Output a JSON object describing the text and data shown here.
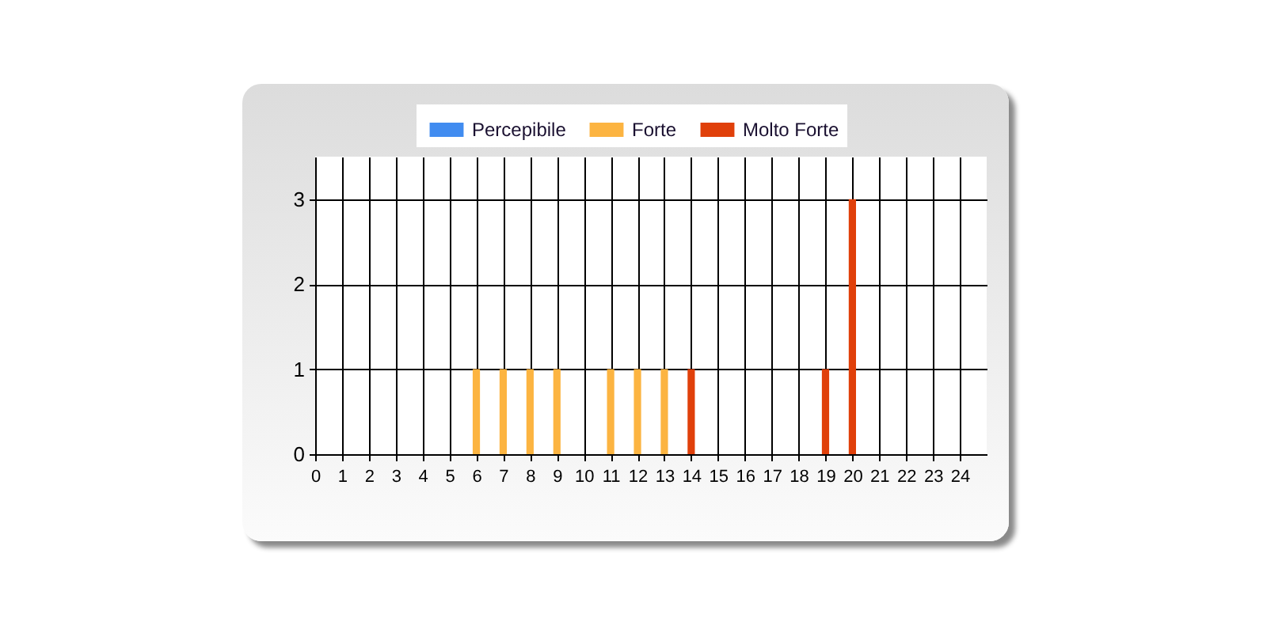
{
  "chart_data": {
    "type": "bar",
    "x": [
      6,
      7,
      8,
      9,
      11,
      12,
      13,
      14,
      19,
      20
    ],
    "series": [
      {
        "name": "Percepibile",
        "color": "#418cf0",
        "values": [
          null,
          null,
          null,
          null,
          null,
          null,
          null,
          null,
          null,
          null
        ]
      },
      {
        "name": "Forte",
        "color": "#fcb441",
        "values": [
          1,
          1,
          1,
          1,
          1,
          1,
          1,
          null,
          null,
          null
        ]
      },
      {
        "name": "Molto Forte",
        "color": "#e0400a",
        "values": [
          null,
          null,
          null,
          null,
          null,
          null,
          null,
          1,
          1,
          3
        ]
      }
    ],
    "xlim": [
      0,
      25
    ],
    "xticks": [
      0,
      1,
      2,
      3,
      4,
      5,
      6,
      7,
      8,
      9,
      10,
      11,
      12,
      13,
      14,
      15,
      16,
      17,
      18,
      19,
      20,
      21,
      22,
      23,
      24
    ],
    "ylim": [
      0,
      3.5
    ],
    "yticks": [
      0,
      1,
      2,
      3
    ],
    "grid": true,
    "legend": "top"
  }
}
